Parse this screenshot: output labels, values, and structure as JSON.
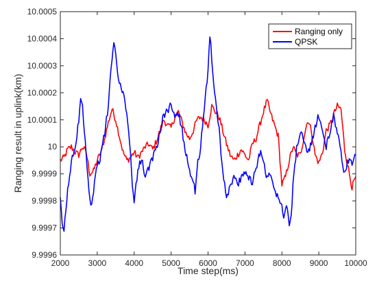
{
  "chart_data": {
    "type": "line",
    "title": "",
    "xlabel": "Time step(ms)",
    "ylabel": "Ranging result in uplink(km)",
    "xlim": [
      2000,
      10000
    ],
    "ylim": [
      9.9996,
      10.0005
    ],
    "x_ticks": [
      2000,
      3000,
      4000,
      5000,
      6000,
      7000,
      8000,
      9000,
      10000
    ],
    "x_tick_labels": [
      "2000",
      "3000",
      "4000",
      "5000",
      "6000",
      "7000",
      "8000",
      "9000",
      "10000"
    ],
    "y_ticks": [
      9.9996,
      9.9997,
      9.9998,
      9.9999,
      10.0,
      10.0001,
      10.0002,
      10.0003,
      10.0004,
      10.0005
    ],
    "y_tick_labels": [
      "9.9996",
      "9.9997",
      "9.9998",
      "9.9999",
      "10",
      "10.0001",
      "10.0002",
      "10.0003",
      "10.0004",
      "10.0005"
    ],
    "grid": false,
    "legend_position": "top-right",
    "series": [
      {
        "name": "Ranging only",
        "color": "#ff0000",
        "x": [
          2000,
          2100,
          2200,
          2300,
          2400,
          2500,
          2600,
          2700,
          2800,
          2900,
          3000,
          3100,
          3200,
          3300,
          3400,
          3500,
          3600,
          3700,
          3800,
          3900,
          4000,
          4100,
          4200,
          4300,
          4400,
          4500,
          4600,
          4700,
          4800,
          4900,
          5000,
          5100,
          5200,
          5300,
          5400,
          5500,
          5600,
          5700,
          5800,
          5900,
          6000,
          6100,
          6200,
          6300,
          6400,
          6500,
          6600,
          6700,
          6800,
          6900,
          7000,
          7100,
          7200,
          7300,
          7400,
          7500,
          7600,
          7700,
          7800,
          7900,
          8000,
          8100,
          8200,
          8300,
          8400,
          8500,
          8600,
          8700,
          8800,
          8900,
          9000,
          9100,
          9200,
          9300,
          9400,
          9500,
          9600,
          9700,
          9800,
          9900,
          10000
        ],
        "y": [
          9.99995,
          9.99996,
          9.99999,
          10.0,
          9.99998,
          9.99997,
          10.0,
          9.99998,
          9.9999,
          9.99991,
          9.99995,
          9.99998,
          10.00003,
          10.00009,
          10.00014,
          10.0001,
          10.00004,
          9.99998,
          9.99995,
          9.99996,
          9.99998,
          9.99996,
          9.99998,
          10.0,
          10.00001,
          9.99999,
          10.00002,
          10.00006,
          10.0001,
          10.00008,
          10.00007,
          10.00011,
          10.00013,
          10.00009,
          10.00005,
          10.00003,
          10.00006,
          10.0001,
          10.00011,
          10.0001,
          10.00008,
          10.00015,
          10.00013,
          10.00011,
          10.00006,
          10.00001,
          9.99997,
          9.99995,
          9.99997,
          9.99999,
          9.99997,
          9.99995,
          10.00001,
          10.00003,
          10.00008,
          10.00013,
          10.00017,
          10.00012,
          10.00008,
          10.00004,
          9.99986,
          9.99989,
          9.99995,
          10.0,
          9.99997,
          9.99997,
          10.00004,
          10.0001,
          10.00006,
          9.99997,
          9.99994,
          9.99998,
          10.00006,
          10.00008,
          10.00012,
          10.00015,
          10.00014,
          9.99999,
          9.99992,
          9.99985,
          9.99989
        ]
      },
      {
        "name": "QPSK",
        "color": "#0000ff",
        "x": [
          2000,
          2050,
          2100,
          2150,
          2200,
          2250,
          2300,
          2350,
          2400,
          2450,
          2500,
          2550,
          2600,
          2650,
          2700,
          2750,
          2800,
          2850,
          2900,
          2950,
          3000,
          3100,
          3200,
          3300,
          3350,
          3400,
          3450,
          3500,
          3550,
          3600,
          3650,
          3700,
          3800,
          3850,
          3900,
          3950,
          4000,
          4050,
          4100,
          4200,
          4300,
          4400,
          4500,
          4600,
          4700,
          4800,
          4900,
          5000,
          5100,
          5200,
          5300,
          5400,
          5500,
          5600,
          5650,
          5700,
          5800,
          5900,
          5950,
          6000,
          6050,
          6100,
          6150,
          6200,
          6250,
          6300,
          6400,
          6500,
          6600,
          6700,
          6800,
          6900,
          7000,
          7100,
          7200,
          7300,
          7400,
          7500,
          7600,
          7700,
          7800,
          7900,
          8000,
          8050,
          8100,
          8150,
          8200,
          8250,
          8300,
          8350,
          8400,
          8500,
          8600,
          8700,
          8800,
          8900,
          9000,
          9100,
          9200,
          9300,
          9400,
          9500,
          9600,
          9700,
          9800,
          9900,
          10000
        ],
        "y": [
          9.9998,
          9.99972,
          9.99969,
          9.99976,
          9.99984,
          9.9999,
          9.99994,
          9.99997,
          10.0,
          10.00004,
          10.0001,
          10.00019,
          10.00015,
          10.00007,
          9.99998,
          9.99988,
          9.99981,
          9.99978,
          9.99984,
          9.99989,
          9.99993,
          9.99997,
          10.00005,
          10.00015,
          10.00026,
          10.00031,
          10.00038,
          10.00035,
          10.00027,
          10.00022,
          10.00023,
          10.0002,
          10.00013,
          10.00006,
          9.99997,
          9.99986,
          9.9998,
          9.99987,
          9.99991,
          9.99996,
          9.99988,
          9.99992,
          9.99996,
          10.0,
          10.00005,
          10.00012,
          10.00013,
          10.00016,
          10.00012,
          10.00012,
          10.00006,
          9.99998,
          9.99992,
          9.99986,
          9.99984,
          9.99992,
          10.0,
          10.00015,
          10.00022,
          10.00028,
          10.00041,
          10.00033,
          10.00024,
          10.00018,
          10.00012,
          10.00006,
          9.99991,
          9.99982,
          9.99985,
          9.99989,
          9.99986,
          9.99988,
          9.99991,
          9.99989,
          9.99987,
          9.99992,
          9.99998,
          9.99996,
          9.99988,
          9.9999,
          9.99985,
          9.99981,
          9.99978,
          9.99975,
          9.99978,
          9.99976,
          9.99971,
          9.99975,
          9.99985,
          9.99993,
          10.0,
          10.00006,
          10.00002,
          9.99997,
          10.00001,
          10.00007,
          10.00012,
          10.00006,
          10.0,
          10.00005,
          10.00011,
          10.00006,
          9.99998,
          9.9999,
          9.99995,
          9.99994,
          9.99997
        ]
      }
    ]
  }
}
